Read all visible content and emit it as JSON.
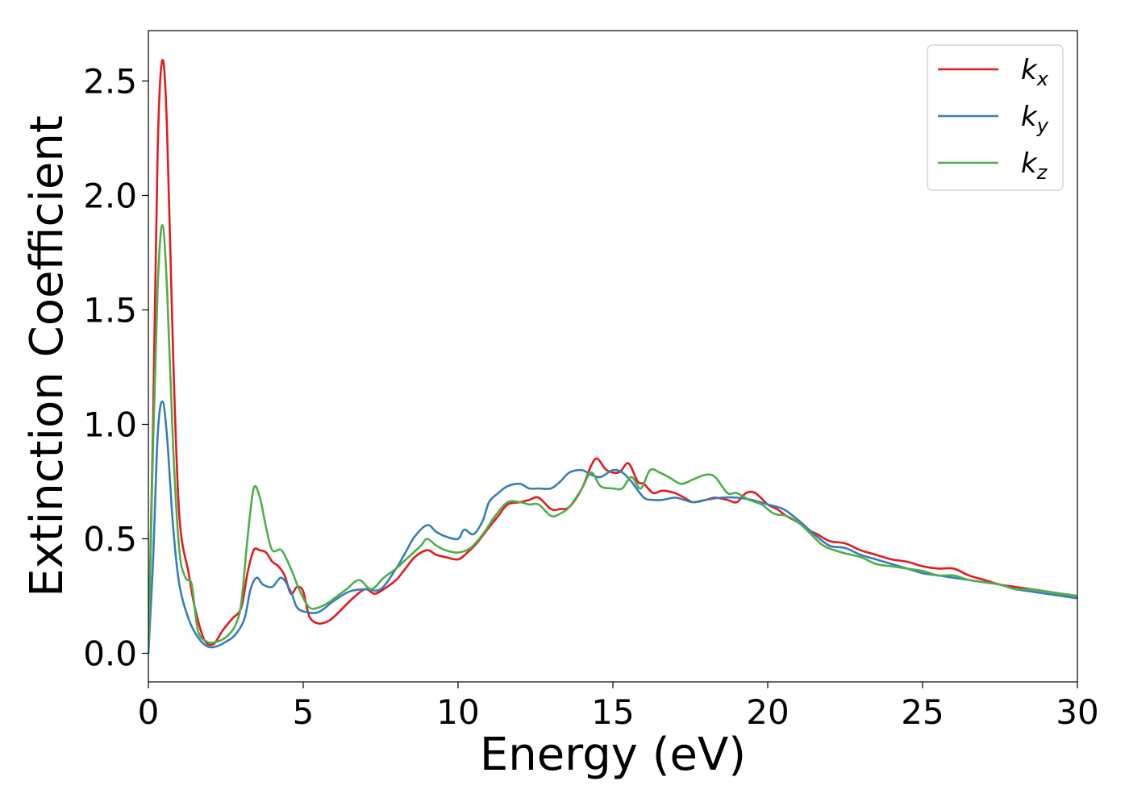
{
  "chart_data": {
    "type": "line",
    "xlabel": "Energy (eV)",
    "ylabel": "Extinction Coefficient",
    "xlim": [
      0,
      30
    ],
    "ylim": [
      -0.125,
      2.72
    ],
    "xticks": [
      0,
      5,
      10,
      15,
      20,
      25,
      30
    ],
    "yticks": [
      0.0,
      0.5,
      1.0,
      1.5,
      2.0,
      2.5
    ],
    "xtick_labels": [
      "0",
      "5",
      "10",
      "15",
      "20",
      "25",
      "30"
    ],
    "ytick_labels": [
      "0.0",
      "0.5",
      "1.0",
      "1.5",
      "2.0",
      "2.5"
    ],
    "grid": false,
    "legend_position": "top-right",
    "series": [
      {
        "name": "kx",
        "base": "k",
        "sub": "x",
        "color": "#e41a1c",
        "points": [
          [
            0,
            0.0
          ],
          [
            0.15,
            1.0
          ],
          [
            0.3,
            2.2
          ],
          [
            0.45,
            2.59
          ],
          [
            0.6,
            2.3
          ],
          [
            0.8,
            1.3
          ],
          [
            1.0,
            0.6
          ],
          [
            1.3,
            0.35
          ],
          [
            1.5,
            0.2
          ],
          [
            1.8,
            0.06
          ],
          [
            2.1,
            0.04
          ],
          [
            2.4,
            0.1
          ],
          [
            2.7,
            0.15
          ],
          [
            3.0,
            0.2
          ],
          [
            3.2,
            0.35
          ],
          [
            3.4,
            0.45
          ],
          [
            3.6,
            0.45
          ],
          [
            3.8,
            0.44
          ],
          [
            4.0,
            0.4
          ],
          [
            4.2,
            0.38
          ],
          [
            4.4,
            0.34
          ],
          [
            4.6,
            0.26
          ],
          [
            4.8,
            0.29
          ],
          [
            5.0,
            0.27
          ],
          [
            5.2,
            0.16
          ],
          [
            5.5,
            0.13
          ],
          [
            5.8,
            0.14
          ],
          [
            6.0,
            0.16
          ],
          [
            6.3,
            0.2
          ],
          [
            6.6,
            0.24
          ],
          [
            7.0,
            0.28
          ],
          [
            7.3,
            0.26
          ],
          [
            7.6,
            0.28
          ],
          [
            8.0,
            0.32
          ],
          [
            8.3,
            0.37
          ],
          [
            8.6,
            0.42
          ],
          [
            9.0,
            0.45
          ],
          [
            9.3,
            0.43
          ],
          [
            9.6,
            0.42
          ],
          [
            10.0,
            0.41
          ],
          [
            10.3,
            0.44
          ],
          [
            10.6,
            0.48
          ],
          [
            11.0,
            0.55
          ],
          [
            11.3,
            0.6
          ],
          [
            11.6,
            0.65
          ],
          [
            12.0,
            0.66
          ],
          [
            12.3,
            0.67
          ],
          [
            12.6,
            0.68
          ],
          [
            13.0,
            0.63
          ],
          [
            13.3,
            0.63
          ],
          [
            13.6,
            0.64
          ],
          [
            14.0,
            0.72
          ],
          [
            14.3,
            0.82
          ],
          [
            14.5,
            0.85
          ],
          [
            14.8,
            0.8
          ],
          [
            15.2,
            0.79
          ],
          [
            15.5,
            0.83
          ],
          [
            15.8,
            0.75
          ],
          [
            16.0,
            0.74
          ],
          [
            16.3,
            0.7
          ],
          [
            16.6,
            0.71
          ],
          [
            17.0,
            0.7
          ],
          [
            17.3,
            0.68
          ],
          [
            17.6,
            0.66
          ],
          [
            18.0,
            0.67
          ],
          [
            18.3,
            0.68
          ],
          [
            18.7,
            0.67
          ],
          [
            19.0,
            0.66
          ],
          [
            19.3,
            0.7
          ],
          [
            19.6,
            0.7
          ],
          [
            20.0,
            0.65
          ],
          [
            20.3,
            0.63
          ],
          [
            20.6,
            0.6
          ],
          [
            21.0,
            0.57
          ],
          [
            21.3,
            0.54
          ],
          [
            21.6,
            0.52
          ],
          [
            22.0,
            0.49
          ],
          [
            22.5,
            0.48
          ],
          [
            23.0,
            0.45
          ],
          [
            23.5,
            0.43
          ],
          [
            24.0,
            0.41
          ],
          [
            24.5,
            0.4
          ],
          [
            25.0,
            0.38
          ],
          [
            25.5,
            0.37
          ],
          [
            26.0,
            0.37
          ],
          [
            26.5,
            0.34
          ],
          [
            27.0,
            0.32
          ],
          [
            27.5,
            0.3
          ],
          [
            28.0,
            0.29
          ],
          [
            28.5,
            0.28
          ],
          [
            29.0,
            0.27
          ],
          [
            29.5,
            0.26
          ],
          [
            30.0,
            0.25
          ]
        ]
      },
      {
        "name": "ky",
        "base": "k",
        "sub": "y",
        "color": "#377eb8",
        "points": [
          [
            0,
            0.0
          ],
          [
            0.15,
            0.4
          ],
          [
            0.3,
            0.95
          ],
          [
            0.45,
            1.1
          ],
          [
            0.6,
            0.95
          ],
          [
            0.8,
            0.55
          ],
          [
            1.0,
            0.3
          ],
          [
            1.3,
            0.15
          ],
          [
            1.6,
            0.07
          ],
          [
            1.9,
            0.03
          ],
          [
            2.2,
            0.03
          ],
          [
            2.5,
            0.05
          ],
          [
            2.8,
            0.08
          ],
          [
            3.1,
            0.15
          ],
          [
            3.3,
            0.28
          ],
          [
            3.5,
            0.33
          ],
          [
            3.7,
            0.3
          ],
          [
            4.0,
            0.29
          ],
          [
            4.3,
            0.33
          ],
          [
            4.6,
            0.27
          ],
          [
            4.8,
            0.2
          ],
          [
            5.1,
            0.18
          ],
          [
            5.5,
            0.18
          ],
          [
            6.0,
            0.23
          ],
          [
            6.5,
            0.27
          ],
          [
            7.0,
            0.28
          ],
          [
            7.5,
            0.28
          ],
          [
            8.0,
            0.37
          ],
          [
            8.3,
            0.44
          ],
          [
            8.6,
            0.51
          ],
          [
            9.0,
            0.56
          ],
          [
            9.3,
            0.53
          ],
          [
            9.6,
            0.51
          ],
          [
            10.0,
            0.5
          ],
          [
            10.2,
            0.54
          ],
          [
            10.5,
            0.52
          ],
          [
            10.8,
            0.58
          ],
          [
            11.0,
            0.66
          ],
          [
            11.3,
            0.7
          ],
          [
            11.6,
            0.73
          ],
          [
            12.0,
            0.74
          ],
          [
            12.3,
            0.72
          ],
          [
            12.6,
            0.72
          ],
          [
            13.0,
            0.72
          ],
          [
            13.3,
            0.75
          ],
          [
            13.6,
            0.79
          ],
          [
            14.0,
            0.8
          ],
          [
            14.3,
            0.78
          ],
          [
            14.6,
            0.77
          ],
          [
            15.0,
            0.8
          ],
          [
            15.3,
            0.79
          ],
          [
            15.6,
            0.75
          ],
          [
            16.0,
            0.68
          ],
          [
            16.3,
            0.67
          ],
          [
            16.6,
            0.67
          ],
          [
            17.0,
            0.68
          ],
          [
            17.3,
            0.67
          ],
          [
            17.6,
            0.66
          ],
          [
            18.0,
            0.67
          ],
          [
            18.5,
            0.68
          ],
          [
            19.0,
            0.68
          ],
          [
            19.5,
            0.67
          ],
          [
            20.0,
            0.65
          ],
          [
            20.5,
            0.63
          ],
          [
            21.0,
            0.58
          ],
          [
            21.5,
            0.52
          ],
          [
            22.0,
            0.47
          ],
          [
            22.5,
            0.46
          ],
          [
            23.0,
            0.43
          ],
          [
            23.5,
            0.41
          ],
          [
            24.0,
            0.39
          ],
          [
            24.5,
            0.37
          ],
          [
            25.0,
            0.35
          ],
          [
            25.5,
            0.34
          ],
          [
            26.0,
            0.33
          ],
          [
            26.5,
            0.32
          ],
          [
            27.0,
            0.31
          ],
          [
            27.5,
            0.3
          ],
          [
            28.0,
            0.28
          ],
          [
            28.5,
            0.27
          ],
          [
            29.0,
            0.26
          ],
          [
            29.5,
            0.25
          ],
          [
            30.0,
            0.24
          ]
        ]
      },
      {
        "name": "kz",
        "base": "k",
        "sub": "z",
        "color": "#4daf4a",
        "points": [
          [
            0,
            0.0
          ],
          [
            0.15,
            0.9
          ],
          [
            0.3,
            1.6
          ],
          [
            0.45,
            1.87
          ],
          [
            0.6,
            1.6
          ],
          [
            0.8,
            0.9
          ],
          [
            1.0,
            0.45
          ],
          [
            1.2,
            0.33
          ],
          [
            1.4,
            0.3
          ],
          [
            1.6,
            0.1
          ],
          [
            1.9,
            0.05
          ],
          [
            2.2,
            0.05
          ],
          [
            2.5,
            0.07
          ],
          [
            2.8,
            0.12
          ],
          [
            3.0,
            0.22
          ],
          [
            3.2,
            0.5
          ],
          [
            3.4,
            0.72
          ],
          [
            3.6,
            0.68
          ],
          [
            3.8,
            0.55
          ],
          [
            4.0,
            0.45
          ],
          [
            4.3,
            0.45
          ],
          [
            4.6,
            0.37
          ],
          [
            4.9,
            0.27
          ],
          [
            5.2,
            0.2
          ],
          [
            5.5,
            0.2
          ],
          [
            5.8,
            0.22
          ],
          [
            6.1,
            0.25
          ],
          [
            6.4,
            0.28
          ],
          [
            6.8,
            0.32
          ],
          [
            7.2,
            0.28
          ],
          [
            7.6,
            0.33
          ],
          [
            8.0,
            0.37
          ],
          [
            8.4,
            0.42
          ],
          [
            8.8,
            0.47
          ],
          [
            9.0,
            0.5
          ],
          [
            9.3,
            0.47
          ],
          [
            9.6,
            0.45
          ],
          [
            10.0,
            0.44
          ],
          [
            10.4,
            0.46
          ],
          [
            10.8,
            0.52
          ],
          [
            11.2,
            0.6
          ],
          [
            11.6,
            0.66
          ],
          [
            12.0,
            0.66
          ],
          [
            12.3,
            0.65
          ],
          [
            12.6,
            0.65
          ],
          [
            13.0,
            0.6
          ],
          [
            13.3,
            0.61
          ],
          [
            13.6,
            0.64
          ],
          [
            14.0,
            0.72
          ],
          [
            14.3,
            0.79
          ],
          [
            14.6,
            0.73
          ],
          [
            15.0,
            0.72
          ],
          [
            15.3,
            0.72
          ],
          [
            15.6,
            0.77
          ],
          [
            15.9,
            0.72
          ],
          [
            16.2,
            0.8
          ],
          [
            16.5,
            0.79
          ],
          [
            16.8,
            0.77
          ],
          [
            17.2,
            0.74
          ],
          [
            17.6,
            0.76
          ],
          [
            18.0,
            0.78
          ],
          [
            18.3,
            0.77
          ],
          [
            18.7,
            0.7
          ],
          [
            19.0,
            0.7
          ],
          [
            19.4,
            0.67
          ],
          [
            19.8,
            0.65
          ],
          [
            20.2,
            0.61
          ],
          [
            20.6,
            0.6
          ],
          [
            21.0,
            0.57
          ],
          [
            21.4,
            0.52
          ],
          [
            21.8,
            0.47
          ],
          [
            22.4,
            0.44
          ],
          [
            23.0,
            0.42
          ],
          [
            23.5,
            0.39
          ],
          [
            24.0,
            0.38
          ],
          [
            24.5,
            0.37
          ],
          [
            25.0,
            0.36
          ],
          [
            25.5,
            0.34
          ],
          [
            26.0,
            0.34
          ],
          [
            26.5,
            0.32
          ],
          [
            27.0,
            0.31
          ],
          [
            27.5,
            0.3
          ],
          [
            28.0,
            0.28
          ],
          [
            28.5,
            0.28
          ],
          [
            29.0,
            0.27
          ],
          [
            29.5,
            0.26
          ],
          [
            30.0,
            0.25
          ]
        ]
      }
    ]
  }
}
